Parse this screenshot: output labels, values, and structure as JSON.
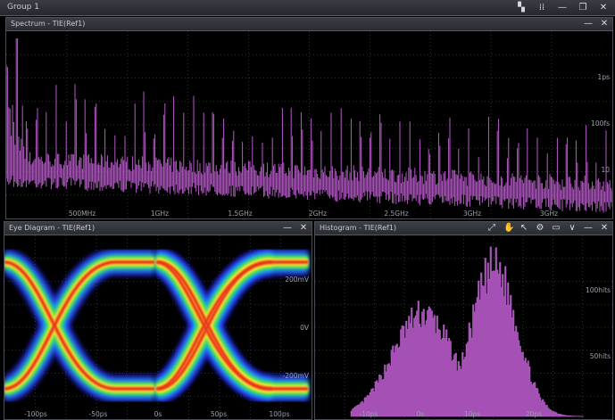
{
  "group": {
    "title": "Group 1"
  },
  "spectrum": {
    "title": "Spectrum - TIE(Ref1)",
    "x_ticks": [
      "500MHz",
      "1GHz",
      "1.5GHz",
      "2GHz",
      "2.5GHz",
      "3GHz",
      "3GHz"
    ],
    "y_ticks": [
      "1ps",
      "100fs",
      "10"
    ]
  },
  "eye": {
    "title": "Eye Diagram - TIE(Ref1)",
    "x_ticks": [
      "-100ps",
      "-50ps",
      "0s",
      "50ps",
      "100ps"
    ],
    "y_ticks": [
      "200mV",
      "0V",
      "-200mV"
    ]
  },
  "hist": {
    "title": "Histogram - TIE(Ref1)",
    "x_ticks": [
      "-10ps",
      "0s",
      "10ps",
      "20ps"
    ],
    "y_ticks": [
      "100hits",
      "50hits"
    ]
  },
  "colors": {
    "trace": "#b659c9",
    "grid": "#2f3338",
    "header": "#33363d",
    "accent": "#2f8fe8"
  },
  "icons": {
    "group": [
      "layout-icon",
      "grid-icon",
      "minimize-icon",
      "restore-icon",
      "close-icon"
    ],
    "pane": [
      "minimize-icon",
      "close-icon"
    ],
    "hist_toolbar": [
      "fit-icon",
      "hand-icon",
      "cursor-icon",
      "settings-icon",
      "display-icon",
      "chevron-icon",
      "minimize-icon",
      "close-icon"
    ]
  }
}
